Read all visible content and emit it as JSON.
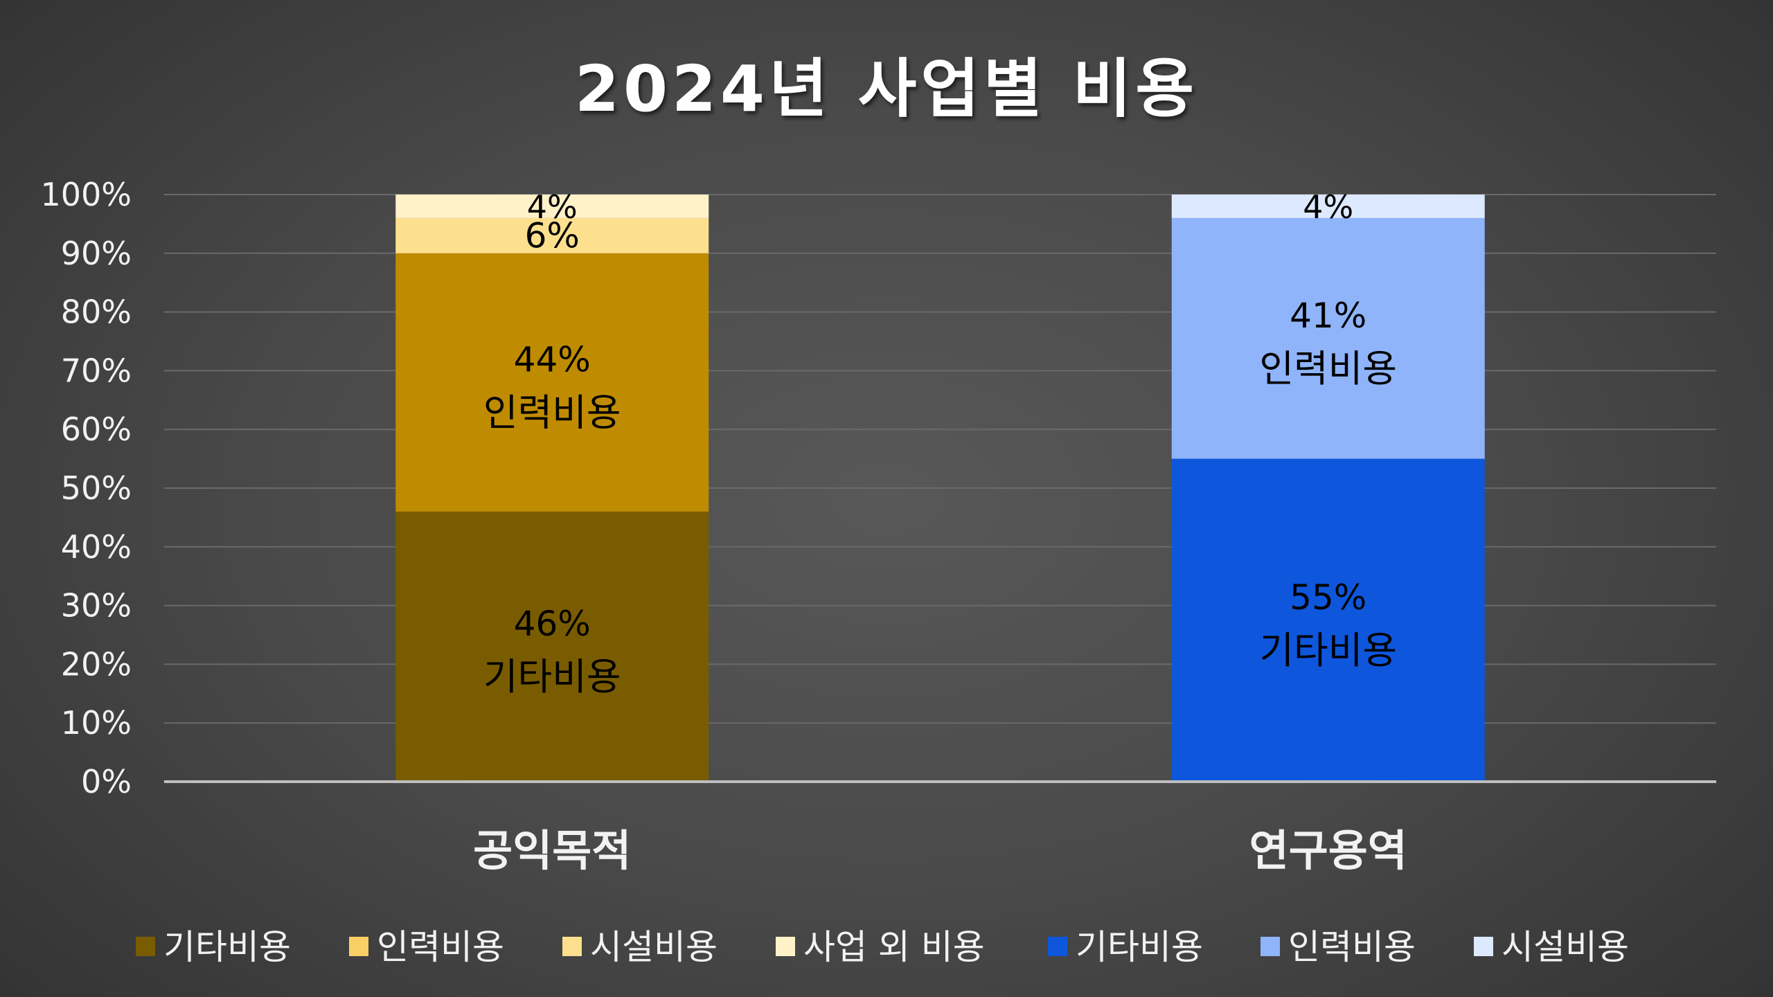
{
  "chart_data": {
    "type": "bar",
    "stacked": true,
    "title": "2024년 사업별 비용",
    "categories": [
      "공익목적",
      "연구용역"
    ],
    "ylim": [
      0,
      100
    ],
    "yticks": [
      "0%",
      "10%",
      "20%",
      "30%",
      "40%",
      "50%",
      "60%",
      "70%",
      "80%",
      "90%",
      "100%"
    ],
    "grid": true,
    "legend_position": "bottom",
    "bars": [
      {
        "category": "공익목적",
        "segments": [
          {
            "name": "기타비용",
            "value": 46,
            "label": "46%",
            "inner_label": "기타비용",
            "color": "#7a5c00"
          },
          {
            "name": "인력비용",
            "value": 44,
            "label": "44%",
            "inner_label": "인력비용",
            "color": "#bf8b00"
          },
          {
            "name": "시설비용",
            "value": 6,
            "label": "6%",
            "inner_label": "",
            "color": "#fde08e"
          },
          {
            "name": "사업 외 비용",
            "value": 4,
            "label": "4%",
            "inner_label": "",
            "color": "#fff1c8"
          }
        ]
      },
      {
        "category": "연구용역",
        "segments": [
          {
            "name": "기타비용",
            "value": 55,
            "label": "55%",
            "inner_label": "기타비용",
            "color": "#0e57dd"
          },
          {
            "name": "인력비용",
            "value": 41,
            "label": "41%",
            "inner_label": "인력비용",
            "color": "#8fb4fa"
          },
          {
            "name": "시설비용",
            "value": 4,
            "label": "4%",
            "inner_label": "",
            "color": "#dde9ff"
          }
        ]
      }
    ],
    "legend": [
      {
        "name": "기타비용",
        "color": "#7a5c00"
      },
      {
        "name": "인력비용",
        "color": "#fad066"
      },
      {
        "name": "시설비용",
        "color": "#fde08e"
      },
      {
        "name": "사업 외 비용",
        "color": "#fff1c8"
      },
      {
        "name": "기타비용",
        "color": "#0e57dd"
      },
      {
        "name": "인력비용",
        "color": "#8fb4fa"
      },
      {
        "name": "시설비용",
        "color": "#dde9ff"
      }
    ],
    "colors": {
      "text": "#ffffff",
      "tick": "#f2f2f2",
      "label": "#000000",
      "grid": "#6a6a6a",
      "axis": "#bfbfbf"
    }
  }
}
